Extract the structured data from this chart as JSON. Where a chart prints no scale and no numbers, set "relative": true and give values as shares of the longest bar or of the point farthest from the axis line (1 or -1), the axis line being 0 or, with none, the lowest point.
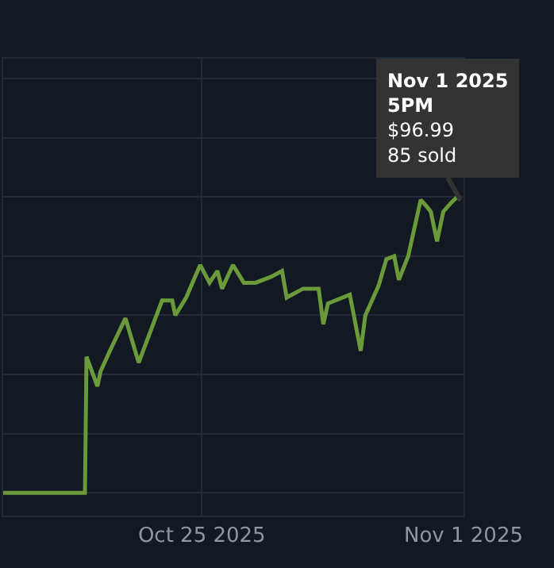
{
  "chart_data": {
    "type": "line",
    "relative": true,
    "grid": true,
    "marker": "none",
    "line_style": "solid",
    "x": [
      "2025-10-19T16:30",
      "2025-10-21T21:00",
      "2025-10-21T22:00",
      "2025-10-22T05:00",
      "2025-10-22T07:00",
      "2025-10-22T13:00",
      "2025-10-22T23:00",
      "2025-10-23T07:30",
      "2025-10-23T17:30",
      "2025-10-23T22:30",
      "2025-10-24T05:00",
      "2025-10-24T07:00",
      "2025-10-24T14:00",
      "2025-10-24T18:00",
      "2025-10-24T23:00",
      "2025-10-25T05:00",
      "2025-10-25T10:00",
      "2025-10-25T13:00",
      "2025-10-25T20:00",
      "2025-10-26T03:00",
      "2025-10-26T10:30",
      "2025-10-26T20:30",
      "2025-10-27T03:30",
      "2025-10-27T06:30",
      "2025-10-27T17:00",
      "2025-10-28T03:00",
      "2025-10-28T06:00",
      "2025-10-28T09:00",
      "2025-10-28T23:00",
      "2025-10-29T06:00",
      "2025-10-29T09:00",
      "2025-10-29T17:30",
      "2025-10-29T22:30",
      "2025-10-30T03:30",
      "2025-10-30T06:30",
      "2025-10-30T12:30",
      "2025-10-30T20:30",
      "2025-10-31T00:00",
      "2025-10-31T03:00",
      "2025-10-31T07:00",
      "2025-10-31T11:00",
      "2025-10-31T16:00",
      "2025-10-31T20:00",
      "2025-10-31T22:00"
    ],
    "series": [
      {
        "color": "#6b9a3a",
        "values": [
          0,
          0,
          0.46,
          0.36,
          0.41,
          0.48,
          0.59,
          0.44,
          0.58,
          0.65,
          0.65,
          0.6,
          0.66,
          0.71,
          0.77,
          0.71,
          0.75,
          0.69,
          0.77,
          0.71,
          0.71,
          0.73,
          0.75,
          0.66,
          0.69,
          0.69,
          0.57,
          0.64,
          0.67,
          0.48,
          0.6,
          0.7,
          0.79,
          0.8,
          0.72,
          0.8,
          0.99,
          0.97,
          0.95,
          0.85,
          0.95,
          0.98,
          1,
          0.99
        ]
      }
    ],
    "xlim": [
      "2025-10-19T16:30",
      "2025-11-01T00:00"
    ],
    "xticks": [
      {
        "value": "2025-10-25",
        "label": "Oct 25 2025"
      },
      {
        "value": "2025-11-01",
        "label": "Nov 1 2025"
      }
    ],
    "annotations": [
      {
        "text": "Nov 1 2025\n5PM\n$96.99\n85 sold",
        "x": "2025-10-31T22:00",
        "y": 0.99
      }
    ]
  }
}
